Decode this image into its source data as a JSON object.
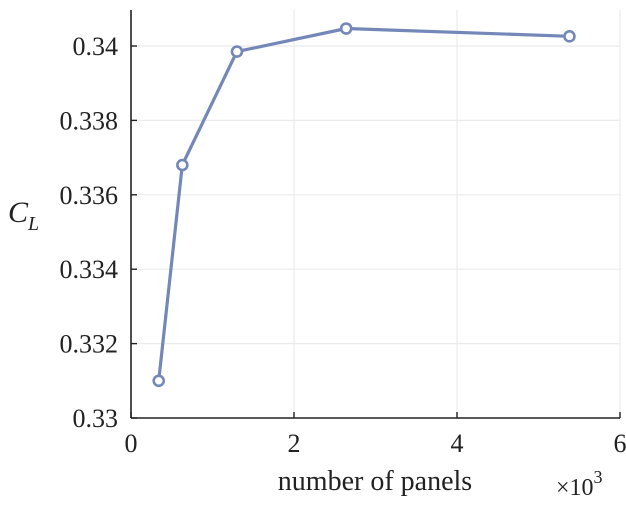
{
  "chart_data": {
    "type": "line",
    "title": "",
    "xlabel": "number of panels",
    "x_multiplier_text": "×10",
    "x_multiplier_exponent": "3",
    "ylabel_main": "C",
    "ylabel_sub": "L",
    "xlim": [
      0,
      6
    ],
    "ylim": [
      0.33,
      0.341
    ],
    "x_ticks": [
      0,
      2,
      4,
      6
    ],
    "x_tick_labels": [
      "0",
      "2",
      "4",
      "6"
    ],
    "y_ticks": [
      0.33,
      0.332,
      0.334,
      0.336,
      0.338,
      0.34
    ],
    "y_tick_labels": [
      "0.33",
      "0.332",
      "0.334",
      "0.336",
      "0.338",
      "0.34"
    ],
    "grid": true,
    "series": [
      {
        "x": [
          0.34,
          0.63,
          1.3,
          2.64,
          5.38
        ],
        "y": [
          0.331,
          0.3368,
          0.33985,
          0.34047,
          0.34026
        ],
        "color": "#7388b8",
        "marker": "open-circle"
      }
    ]
  }
}
